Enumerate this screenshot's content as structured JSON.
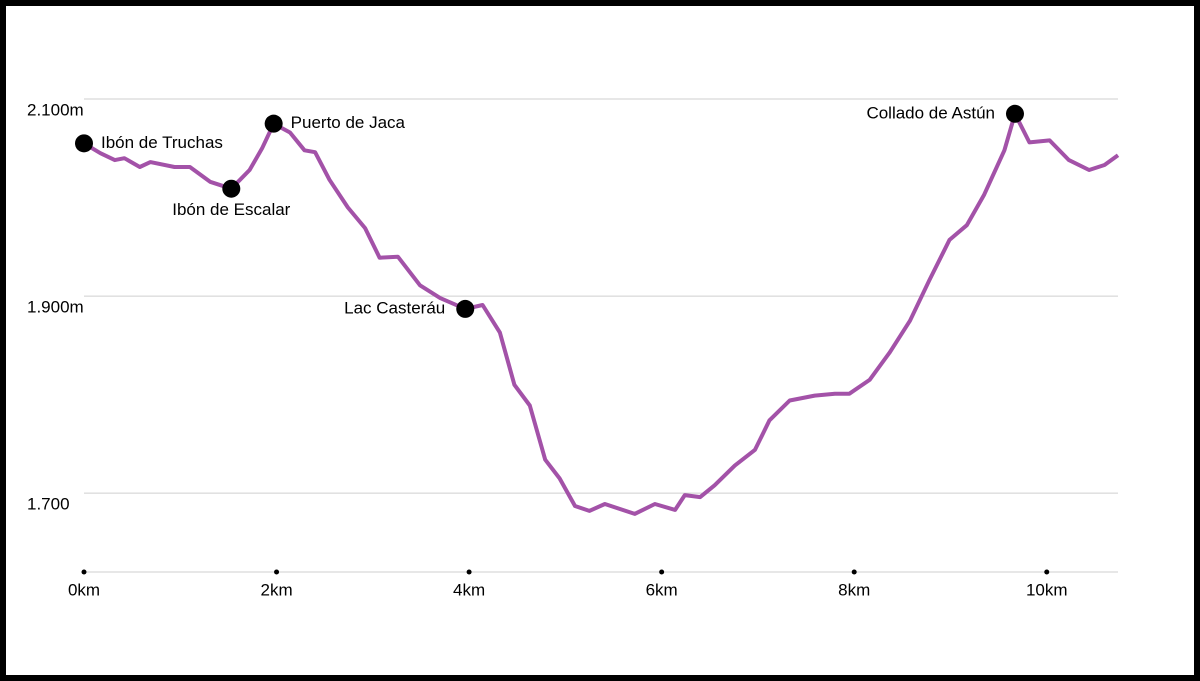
{
  "chart_data": {
    "type": "line",
    "x": [
      0,
      0.17,
      0.32,
      0.42,
      0.58,
      0.69,
      0.94,
      1.1,
      1.31,
      1.53,
      1.72,
      1.85,
      1.97,
      2.14,
      2.29,
      2.4,
      2.55,
      2.74,
      2.92,
      3.07,
      3.26,
      3.49,
      3.7,
      3.96,
      4.14,
      4.32,
      4.47,
      4.63,
      4.79,
      4.94,
      5.1,
      5.25,
      5.41,
      5.72,
      5.93,
      6.14,
      6.24,
      6.4,
      6.55,
      6.76,
      6.97,
      7.12,
      7.33,
      7.59,
      7.8,
      7.95,
      8.16,
      8.37,
      8.58,
      8.78,
      8.99,
      9.17,
      9.35,
      9.56,
      9.67,
      9.82,
      10.03,
      10.23,
      10.44,
      10.6,
      10.74
    ],
    "series": [
      {
        "color": "#a352a8",
        "values": [
          2055,
          2045,
          2038,
          2040,
          2031,
          2036,
          2031,
          2031,
          2016,
          2009,
          2028,
          2050,
          2075,
          2066,
          2048,
          2046,
          2018,
          1990,
          1969,
          1939,
          1940,
          1911,
          1898,
          1887,
          1891,
          1863,
          1810,
          1789,
          1734,
          1715,
          1687,
          1682,
          1689,
          1679,
          1689,
          1683,
          1698,
          1696,
          1708,
          1728,
          1744,
          1774,
          1794,
          1799,
          1801,
          1801,
          1815,
          1843,
          1875,
          1916,
          1957,
          1972,
          2003,
          2048,
          2085,
          2056,
          2058,
          2038,
          2028,
          2033,
          2043
        ]
      }
    ],
    "annotations": [
      {
        "label": "Ibón de Truchas",
        "x": 0,
        "y": 2055
      },
      {
        "label": "Ibón de Escalar",
        "x": 1.53,
        "y": 2009
      },
      {
        "label": "Puerto de Jaca",
        "x": 1.97,
        "y": 2075
      },
      {
        "label": "Lac Casteráu",
        "x": 3.96,
        "y": 1887
      },
      {
        "label": "Collado de Astún",
        "x": 9.67,
        "y": 2085
      }
    ],
    "xlim": [
      0,
      10.74
    ],
    "ylim": [
      1620,
      2180
    ],
    "xticks": [
      {
        "value": 0,
        "label": "0km"
      },
      {
        "value": 2,
        "label": "2km"
      },
      {
        "value": 4,
        "label": "4km"
      },
      {
        "value": 6,
        "label": "6km"
      },
      {
        "value": 8,
        "label": "8km"
      },
      {
        "value": 10,
        "label": "10km"
      }
    ],
    "yticks": [
      {
        "value": 2100,
        "label": "2.100m"
      },
      {
        "value": 1900,
        "label": "1.900m"
      },
      {
        "value": 1700,
        "label": "1.700"
      }
    ],
    "grid": true
  }
}
